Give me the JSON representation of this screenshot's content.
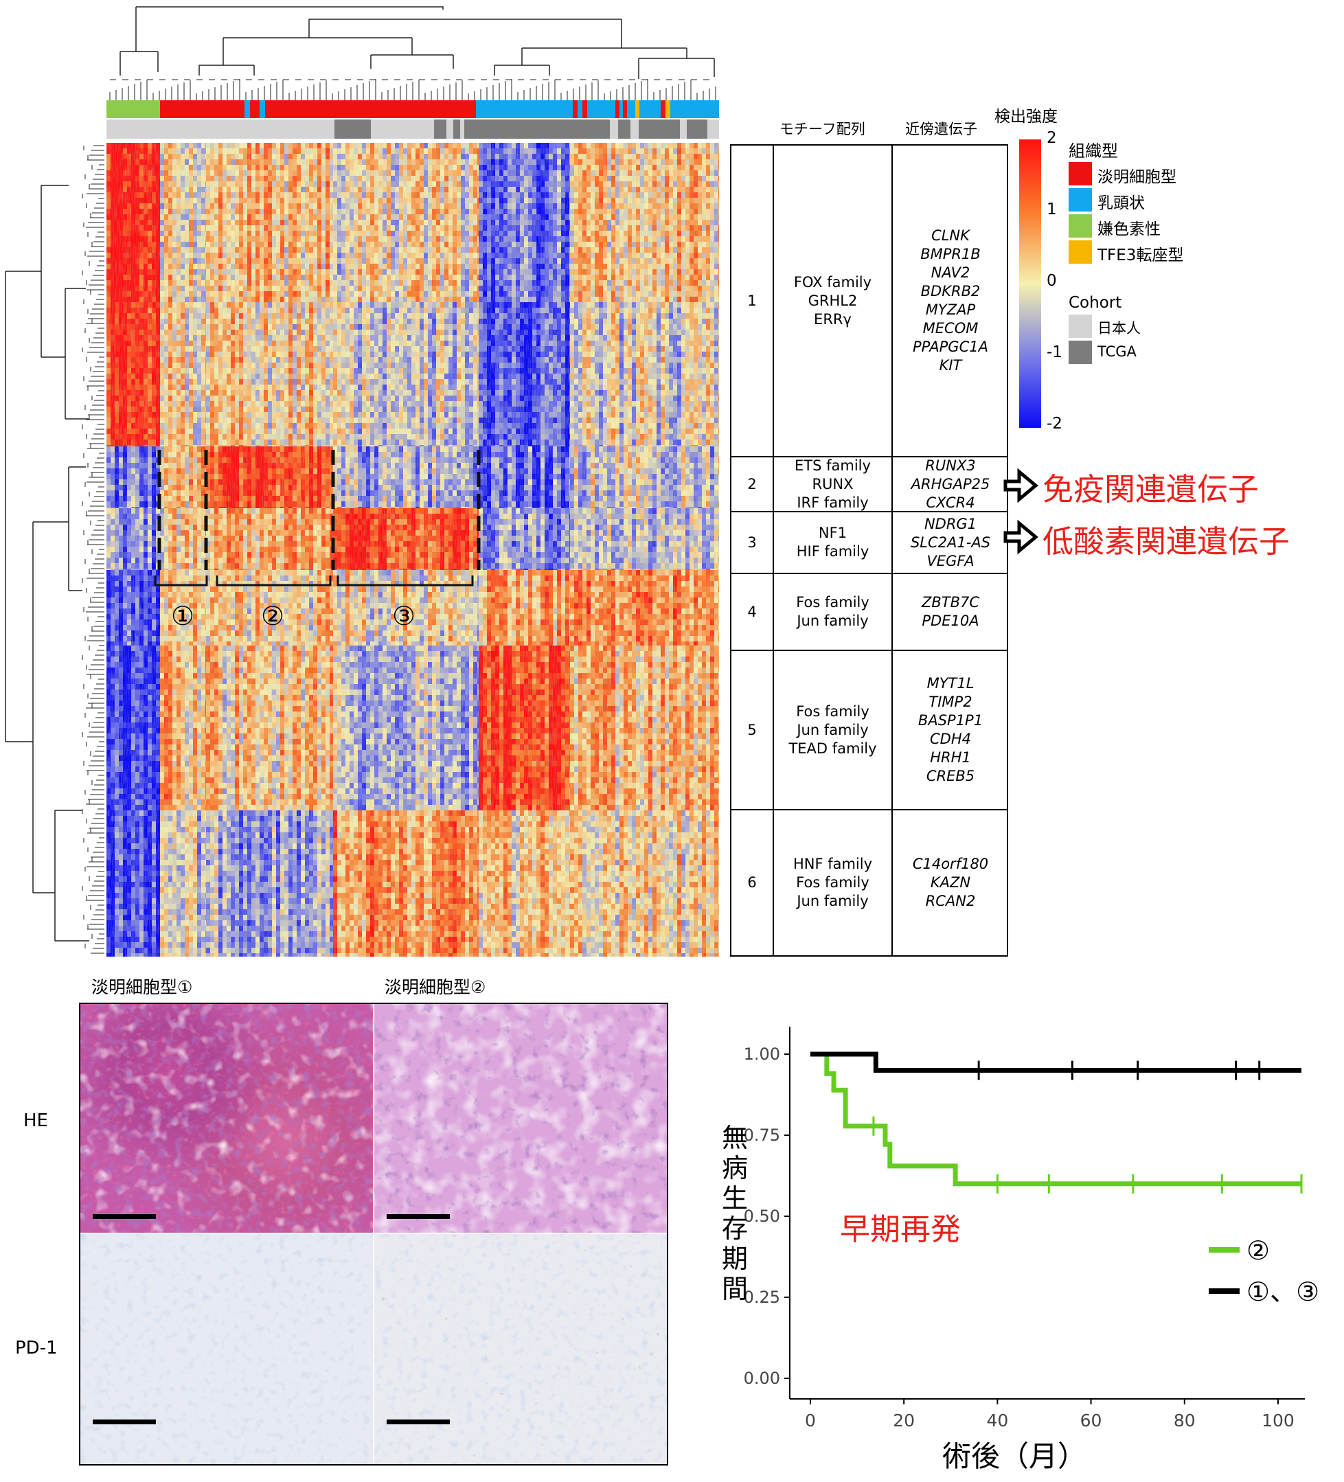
{
  "heatmap": {
    "clusters": [
      "①",
      "②",
      "③"
    ]
  },
  "motif_table": {
    "header_motif": "モチーフ配列",
    "header_gene": "近傍遺伝子",
    "rows": [
      {
        "num": "1",
        "motifs": [
          "FOX family",
          "GRHL2",
          "ERRγ"
        ],
        "genes": [
          "CLNK",
          "BMPR1B",
          "NAV2",
          "BDKRB2",
          "MYZAP",
          "MECOM",
          "PPAPGC1A",
          "KIT"
        ]
      },
      {
        "num": "2",
        "motifs": [
          "ETS family",
          "RUNX",
          "IRF family"
        ],
        "genes": [
          "RUNX3",
          "ARHGAP25",
          "CXCR4"
        ]
      },
      {
        "num": "3",
        "motifs": [
          "NF1",
          "HIF family"
        ],
        "genes": [
          "NDRG1",
          "SLC2A1-AS",
          "VEGFA"
        ]
      },
      {
        "num": "4",
        "motifs": [
          "Fos family",
          "Jun family"
        ],
        "genes": [
          "ZBTB7C",
          "PDE10A"
        ]
      },
      {
        "num": "5",
        "motifs": [
          "Fos family",
          "Jun family",
          "TEAD family"
        ],
        "genes": [
          "MYT1L",
          "TIMP2",
          "BASP1P1",
          "CDH4",
          "HRH1",
          "CREB5"
        ]
      },
      {
        "num": "6",
        "motifs": [
          "HNF family",
          "Fos family",
          "Jun family"
        ],
        "genes": [
          "C14orf180",
          "KAZN",
          "RCAN2"
        ]
      }
    ]
  },
  "annotations": {
    "immune": "免疫関連遺伝子",
    "hypoxia": "低酸素関連遺伝子"
  },
  "legend": {
    "colorbar_title": "検出強度",
    "colorbar_ticks": [
      "2",
      "1",
      "0",
      "-1",
      "-2"
    ],
    "histology_title": "組織型",
    "histology": [
      {
        "label": "淡明細胞型",
        "color": "#ee1111"
      },
      {
        "label": "乳頭状",
        "color": "#11a8ee"
      },
      {
        "label": "嫌色素性",
        "color": "#8ecb4a"
      },
      {
        "label": "TFE3転座型",
        "color": "#f7b500"
      }
    ],
    "cohort_title": "Cohort",
    "cohort": [
      {
        "label": "日本人",
        "color": "#d4d4d4"
      },
      {
        "label": "TCGA",
        "color": "#7c7c7c"
      }
    ]
  },
  "histo": {
    "col1_title": "淡明細胞型①",
    "col2_title": "淡明細胞型②",
    "row1_label": "HE",
    "row2_label": "PD-1"
  },
  "chart_data": {
    "type": "line",
    "xlabel": "術後（月）",
    "ylabel": "無病生存期間",
    "xlim": [
      0,
      105
    ],
    "ylim": [
      0,
      1
    ],
    "x_ticks": [
      "0",
      "20",
      "40",
      "60",
      "80",
      "100"
    ],
    "y_ticks": [
      "0.00",
      "0.25",
      "0.50",
      "0.75",
      "1.00"
    ],
    "annotation": "早期再発",
    "series": [
      {
        "name": "②",
        "color": "#66cc22",
        "steps": [
          [
            0,
            1.0
          ],
          [
            3.5,
            0.94
          ],
          [
            5,
            0.889
          ],
          [
            7.5,
            0.778
          ],
          [
            16,
            0.722
          ],
          [
            17,
            0.655
          ],
          [
            31,
            0.6
          ],
          [
            105,
            0.6
          ]
        ],
        "censor": [
          [
            13.5,
            0.778
          ],
          [
            40,
            0.6
          ],
          [
            51,
            0.6
          ],
          [
            69,
            0.6
          ],
          [
            88,
            0.6
          ],
          [
            105,
            0.6
          ]
        ]
      },
      {
        "name": "①、③",
        "color": "#000000",
        "steps": [
          [
            0,
            1.0
          ],
          [
            14,
            0.95
          ],
          [
            105,
            0.95
          ]
        ],
        "censor": [
          [
            36,
            0.95
          ],
          [
            56,
            0.95
          ],
          [
            70,
            0.95
          ],
          [
            91,
            0.95
          ],
          [
            96,
            0.95
          ]
        ]
      }
    ]
  }
}
